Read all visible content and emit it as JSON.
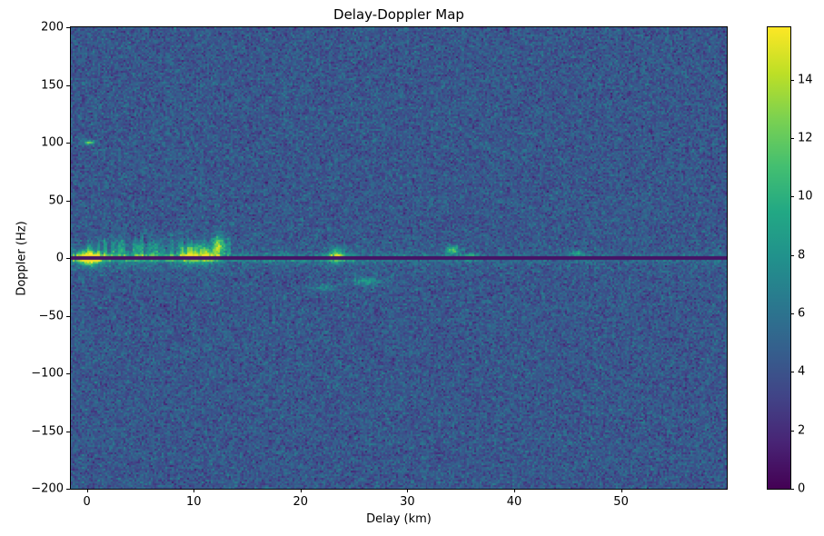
{
  "colors": {
    "figure_background": "#ffffff",
    "text": "#000000",
    "axis": "#000000"
  },
  "chart_data": {
    "type": "heatmap",
    "title": "Delay-Doppler Map",
    "xlabel": "Delay (km)",
    "ylabel": "Doppler (Hz)",
    "xlim": [
      -1.5,
      59.9
    ],
    "ylim": [
      -200,
      200
    ],
    "clim": [
      0,
      15.8
    ],
    "x_ticks": [
      0,
      10,
      20,
      30,
      40,
      50
    ],
    "y_ticks": [
      200,
      150,
      100,
      50,
      0,
      -50,
      -100,
      -150,
      -200
    ],
    "colorbar_ticks": [
      0,
      2,
      4,
      6,
      8,
      10,
      12,
      14
    ],
    "grid": false,
    "legend": "none",
    "colormap": "viridis",
    "colormap_stops": [
      [
        0.0,
        "#440154"
      ],
      [
        0.1,
        "#482475"
      ],
      [
        0.2,
        "#414487"
      ],
      [
        0.3,
        "#355f8d"
      ],
      [
        0.4,
        "#2a788e"
      ],
      [
        0.5,
        "#21918c"
      ],
      [
        0.6,
        "#22a884"
      ],
      [
        0.7,
        "#44bf70"
      ],
      [
        0.8,
        "#7ad151"
      ],
      [
        0.9,
        "#bddf26"
      ],
      [
        1.0,
        "#fde725"
      ]
    ],
    "background_noise": {
      "mean": 4.3,
      "std": 1.05
    },
    "features": {
      "dark_zero_line": {
        "doppler_hz": 0,
        "halfwidth_hz": 0.8,
        "value": 0.8
      },
      "zero_doppler_ridge": {
        "sigma_hz": 2.0,
        "halo_sigma_hz": 7.0,
        "segments": [
          {
            "delay_range": [
              -1.5,
              13.0
            ],
            "amplitude": 9.0
          },
          {
            "delay_range": [
              13.0,
              22.0
            ],
            "amplitude": 4.5
          },
          {
            "delay_range": [
              22.0,
              25.0
            ],
            "amplitude": 6.0
          },
          {
            "delay_range": [
              25.0,
              36.0
            ],
            "amplitude": 3.2
          },
          {
            "delay_range": [
              36.0,
              59.9
            ],
            "amplitude": 2.2
          }
        ]
      },
      "upward_clutter": {
        "delay_range": [
          0.0,
          13.5
        ],
        "center_doppler_hz": 8,
        "amplitude": 2.6
      },
      "blobs": [
        {
          "delay": 0.2,
          "doppler": 0,
          "amplitude": 13.0,
          "sigma_delay": 0.7,
          "sigma_doppler": 4.0
        },
        {
          "delay": 0.2,
          "doppler": 100,
          "amplitude": 8.0,
          "sigma_delay": 0.4,
          "sigma_doppler": 1.2
        },
        {
          "delay": 9.6,
          "doppler": 3,
          "amplitude": 7.0,
          "sigma_delay": 0.5,
          "sigma_doppler": 5.0
        },
        {
          "delay": 11.2,
          "doppler": 2,
          "amplitude": 6.0,
          "sigma_delay": 0.5,
          "sigma_doppler": 4.0
        },
        {
          "delay": 12.4,
          "doppler": 11,
          "amplitude": 7.5,
          "sigma_delay": 0.4,
          "sigma_doppler": 6.0
        },
        {
          "delay": 23.4,
          "doppler": 2,
          "amplitude": 7.0,
          "sigma_delay": 0.5,
          "sigma_doppler": 4.0
        },
        {
          "delay": 26.2,
          "doppler": -20,
          "amplitude": 4.5,
          "sigma_delay": 0.9,
          "sigma_doppler": 2.5
        },
        {
          "delay": 22.3,
          "doppler": -26,
          "amplitude": 3.5,
          "sigma_delay": 0.7,
          "sigma_doppler": 2.0
        },
        {
          "delay": 34.2,
          "doppler": 7,
          "amplitude": 7.0,
          "sigma_delay": 0.4,
          "sigma_doppler": 2.5
        },
        {
          "delay": 36.0,
          "doppler": 1,
          "amplitude": 5.0,
          "sigma_delay": 0.5,
          "sigma_doppler": 2.0
        },
        {
          "delay": 46.0,
          "doppler": 4,
          "amplitude": 4.0,
          "sigma_delay": 0.4,
          "sigma_doppler": 2.0
        }
      ]
    }
  }
}
